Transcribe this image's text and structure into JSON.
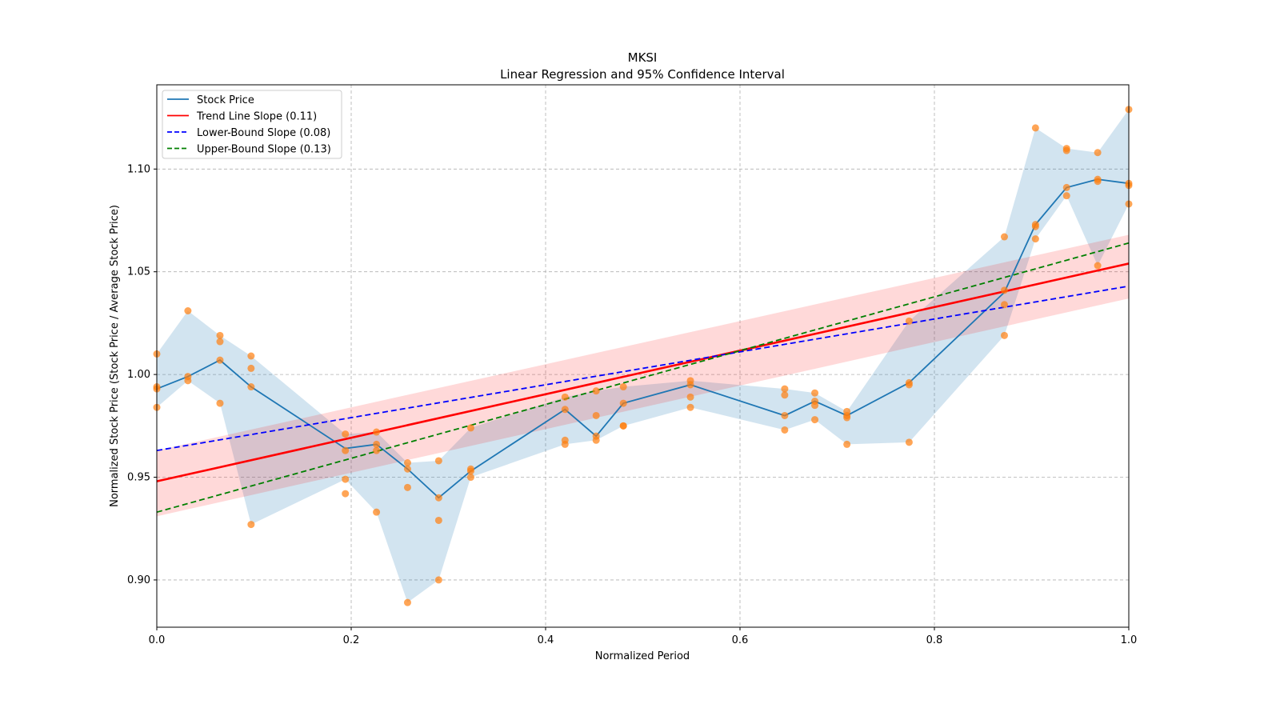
{
  "chart_data": {
    "type": "line",
    "title": "MKSI",
    "subtitle": "Linear Regression and 95% Confidence Interval",
    "xlabel": "Normalized Period",
    "ylabel": "Normalized Stock Price (Stock Price / Average Stock Price)",
    "xlim": [
      0,
      1
    ],
    "ylim": [
      0.877,
      1.141
    ],
    "xticks": [
      0,
      0.2,
      0.4,
      0.6,
      0.8,
      1.0
    ],
    "xtick_labels": [
      "0.0",
      "0.2",
      "0.4",
      "0.6",
      "0.8",
      "1.0"
    ],
    "yticks": [
      0.9,
      0.95,
      1.0,
      1.05,
      1.1
    ],
    "ytick_labels": [
      "0.90",
      "0.95",
      "1.00",
      "1.05",
      "1.10"
    ],
    "grid": true,
    "legend_position": "top-left",
    "legend": [
      {
        "label": "Stock Price",
        "color": "#1f77b4",
        "style": "solid"
      },
      {
        "label": "Trend Line Slope (0.11)",
        "color": "#ff0000",
        "style": "solid"
      },
      {
        "label": "Lower-Bound Slope (0.08)",
        "color": "#0000ff",
        "style": "dashed"
      },
      {
        "label": "Upper-Bound Slope (0.13)",
        "color": "#008000",
        "style": "dashed"
      }
    ],
    "stock_price": {
      "x": [
        0,
        0.032,
        0.065,
        0.097,
        0.194,
        0.226,
        0.258,
        0.29,
        0.323,
        0.42,
        0.452,
        0.48,
        0.549,
        0.646,
        0.677,
        0.71,
        0.774,
        0.872,
        0.904,
        0.936,
        0.968,
        1.0
      ],
      "y": [
        0.993,
        0.999,
        1.007,
        0.994,
        0.964,
        0.966,
        0.954,
        0.94,
        0.953,
        0.983,
        0.97,
        0.986,
        0.995,
        0.98,
        0.987,
        0.98,
        0.996,
        1.04,
        1.073,
        1.091,
        1.095,
        1.093
      ],
      "band_low": [
        0.984,
        0.997,
        0.986,
        0.927,
        0.949,
        0.933,
        0.889,
        0.9,
        0.95,
        0.966,
        0.968,
        0.975,
        0.984,
        0.973,
        0.978,
        0.966,
        0.967,
        1.019,
        1.066,
        1.087,
        1.053,
        1.083
      ],
      "band_high": [
        1.01,
        1.031,
        1.019,
        1.009,
        0.971,
        0.972,
        0.957,
        0.958,
        0.974,
        0.989,
        0.992,
        0.994,
        0.997,
        0.993,
        0.991,
        0.982,
        1.026,
        1.067,
        1.12,
        1.11,
        1.108,
        1.129
      ],
      "color": "#1f77b4",
      "band_color": "#1f77b4"
    },
    "scatter": {
      "color": "#ff7f0e",
      "points": [
        [
          0,
          1.01
        ],
        [
          0,
          0.994
        ],
        [
          0,
          0.993
        ],
        [
          0,
          0.984
        ],
        [
          0.032,
          1.031
        ],
        [
          0.032,
          0.999
        ],
        [
          0.032,
          0.997
        ],
        [
          0.065,
          1.019
        ],
        [
          0.065,
          1.016
        ],
        [
          0.065,
          1.007
        ],
        [
          0.065,
          0.986
        ],
        [
          0.097,
          1.009
        ],
        [
          0.097,
          1.003
        ],
        [
          0.097,
          0.994
        ],
        [
          0.097,
          0.927
        ],
        [
          0.194,
          0.971
        ],
        [
          0.194,
          0.963
        ],
        [
          0.194,
          0.949
        ],
        [
          0.194,
          0.942
        ],
        [
          0.226,
          0.972
        ],
        [
          0.226,
          0.966
        ],
        [
          0.226,
          0.963
        ],
        [
          0.226,
          0.933
        ],
        [
          0.258,
          0.957
        ],
        [
          0.258,
          0.954
        ],
        [
          0.258,
          0.945
        ],
        [
          0.258,
          0.889
        ],
        [
          0.29,
          0.958
        ],
        [
          0.29,
          0.94
        ],
        [
          0.29,
          0.929
        ],
        [
          0.29,
          0.9
        ],
        [
          0.323,
          0.974
        ],
        [
          0.323,
          0.954
        ],
        [
          0.323,
          0.953
        ],
        [
          0.323,
          0.95
        ],
        [
          0.42,
          0.989
        ],
        [
          0.42,
          0.983
        ],
        [
          0.42,
          0.968
        ],
        [
          0.42,
          0.966
        ],
        [
          0.452,
          0.992
        ],
        [
          0.452,
          0.98
        ],
        [
          0.452,
          0.97
        ],
        [
          0.452,
          0.968
        ],
        [
          0.48,
          0.994
        ],
        [
          0.48,
          0.986
        ],
        [
          0.48,
          0.975
        ],
        [
          0.48,
          0.975
        ],
        [
          0.549,
          0.997
        ],
        [
          0.549,
          0.995
        ],
        [
          0.549,
          0.989
        ],
        [
          0.549,
          0.984
        ],
        [
          0.646,
          0.993
        ],
        [
          0.646,
          0.99
        ],
        [
          0.646,
          0.98
        ],
        [
          0.646,
          0.973
        ],
        [
          0.677,
          0.991
        ],
        [
          0.677,
          0.987
        ],
        [
          0.677,
          0.985
        ],
        [
          0.677,
          0.978
        ],
        [
          0.71,
          0.982
        ],
        [
          0.71,
          0.98
        ],
        [
          0.71,
          0.979
        ],
        [
          0.71,
          0.966
        ],
        [
          0.774,
          1.026
        ],
        [
          0.774,
          0.996
        ],
        [
          0.774,
          0.995
        ],
        [
          0.774,
          0.967
        ],
        [
          0.872,
          1.067
        ],
        [
          0.872,
          1.041
        ],
        [
          0.872,
          1.034
        ],
        [
          0.872,
          1.019
        ],
        [
          0.904,
          1.12
        ],
        [
          0.904,
          1.073
        ],
        [
          0.904,
          1.072
        ],
        [
          0.904,
          1.066
        ],
        [
          0.936,
          1.11
        ],
        [
          0.936,
          1.109
        ],
        [
          0.936,
          1.091
        ],
        [
          0.936,
          1.087
        ],
        [
          0.968,
          1.108
        ],
        [
          0.968,
          1.095
        ],
        [
          0.968,
          1.094
        ],
        [
          0.968,
          1.053
        ],
        [
          1.0,
          1.129
        ],
        [
          1.0,
          1.093
        ],
        [
          1.0,
          1.092
        ],
        [
          1.0,
          1.083
        ]
      ]
    },
    "trend_line": {
      "x": [
        0,
        1
      ],
      "y": [
        0.948,
        1.054
      ],
      "color": "#ff0000"
    },
    "confidence_band": {
      "x": [
        0,
        1
      ],
      "low": [
        0.931,
        1.037
      ],
      "high": [
        0.963,
        1.068
      ],
      "color": "#ff0000"
    },
    "lower_bound_line": {
      "x": [
        0,
        1
      ],
      "y": [
        0.963,
        1.043
      ],
      "color": "#0000ff"
    },
    "upper_bound_line": {
      "x": [
        0,
        1
      ],
      "y": [
        0.933,
        1.064
      ],
      "color": "#008000"
    }
  }
}
